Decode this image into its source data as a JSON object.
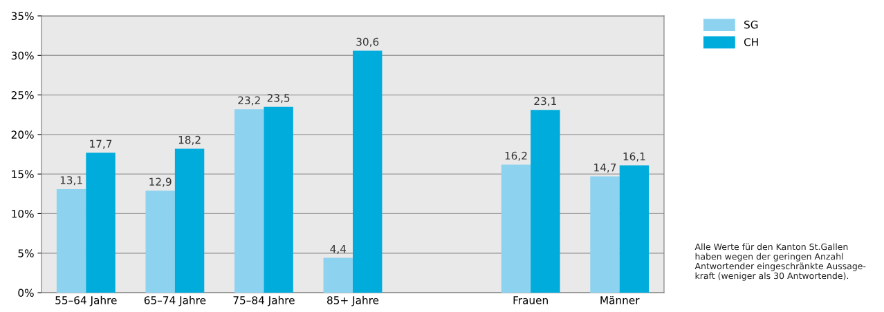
{
  "chart_data": {
    "type": "bar",
    "categories": [
      "55–64 Jahre",
      "65–74 Jahre",
      "75–84 Jahre",
      "85+ Jahre",
      null,
      "Frauen",
      "Männer"
    ],
    "series": [
      {
        "name": "SG",
        "color": "#8dd3f0",
        "values": [
          13.1,
          12.9,
          23.2,
          4.4,
          null,
          16.2,
          14.7
        ],
        "value_labels": [
          "13,1",
          "12,9",
          "23,2",
          "4,4",
          null,
          "16,2",
          "14,7"
        ]
      },
      {
        "name": "CH",
        "color": "#00acdc",
        "values": [
          17.7,
          18.2,
          23.5,
          30.6,
          null,
          23.1,
          16.1
        ],
        "value_labels": [
          "17,7",
          "18,2",
          "23,5",
          "30,6",
          null,
          "23,1",
          "16,1"
        ]
      }
    ],
    "ylim": [
      0,
      35
    ],
    "yticks": [
      {
        "value": 0,
        "label": "0%"
      },
      {
        "value": 5,
        "label": "5%"
      },
      {
        "value": 10,
        "label": "10%"
      },
      {
        "value": 15,
        "label": "15%"
      },
      {
        "value": 20,
        "label": "20%"
      },
      {
        "value": 25,
        "label": "25%"
      },
      {
        "value": 30,
        "label": "30%"
      },
      {
        "value": 35,
        "label": "35%"
      }
    ],
    "grid": "y",
    "legend": "right",
    "annotations": [
      "Alle Werte für den Kanton St.Gallen\nhaben wegen der geringen Anzahl\nAntwortender eingeschränkte Aussage-\nkraft (weniger als 30 Antwortende)."
    ]
  }
}
